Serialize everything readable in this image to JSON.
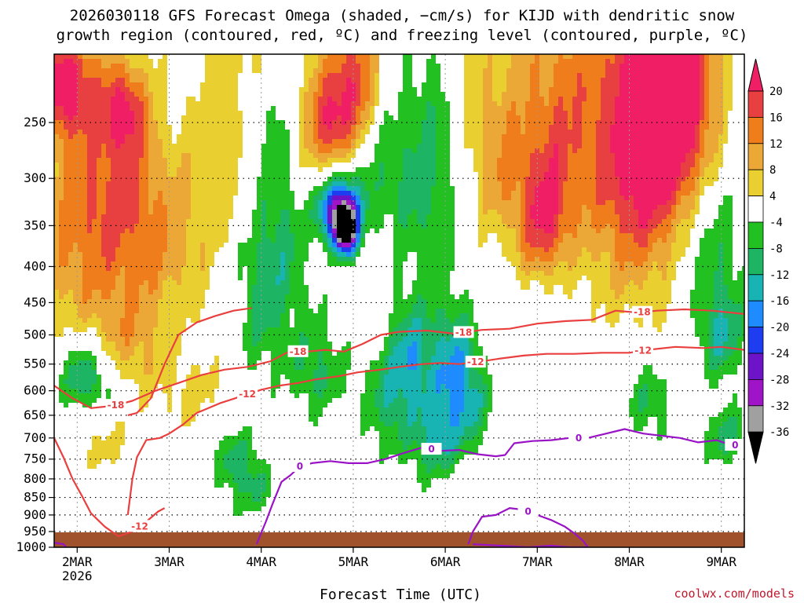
{
  "title": {
    "line1": "2026030118 GFS Forecast Omega (shaded, −cm/s) for KIJD with dendritic snow",
    "line2": "growth region (contoured, red, ºC) and freezing level (contoured, purple, ºC)"
  },
  "credit": "coolwx.com/models",
  "chart_data": {
    "type": "heatmap",
    "title": "2026030118 GFS Forecast Omega (shaded, −cm/s) for KIJD with dendritic snow growth region (contoured, red, ºC) and freezing level (contoured, purple, ºC)",
    "xlabel": "Forecast Time (UTC)",
    "ylabel": "",
    "x_ticks": [
      {
        "label": "2MAR",
        "sub": "2026",
        "day": 2
      },
      {
        "label": "3MAR",
        "sub": "",
        "day": 3
      },
      {
        "label": "4MAR",
        "sub": "",
        "day": 4
      },
      {
        "label": "5MAR",
        "sub": "",
        "day": 5
      },
      {
        "label": "6MAR",
        "sub": "",
        "day": 6
      },
      {
        "label": "7MAR",
        "sub": "",
        "day": 7
      },
      {
        "label": "8MAR",
        "sub": "",
        "day": 8
      },
      {
        "label": "9MAR",
        "sub": "",
        "day": 9
      }
    ],
    "xlim": [
      1.75,
      9.25
    ],
    "y_ticks": [
      250,
      300,
      350,
      400,
      450,
      500,
      550,
      600,
      650,
      700,
      750,
      800,
      850,
      900,
      950,
      1000
    ],
    "ylim_hpa": [
      200,
      1000
    ],
    "grid": true,
    "colorbar": {
      "levels": [
        20,
        16,
        12,
        8,
        4,
        -4,
        -8,
        -12,
        -16,
        -20,
        -24,
        -28,
        -32,
        -36
      ],
      "colors": [
        "#f01e64",
        "#e84040",
        "#ef7d1c",
        "#eca836",
        "#e9d030",
        "#ffffff",
        "#22c020",
        "#1db464",
        "#18b4b4",
        "#1e8cff",
        "#1e3cf0",
        "#6e14c8",
        "#a014c8",
        "#a0a0a0",
        "#000000"
      ]
    },
    "series": [
      {
        "name": "-18",
        "color": "#ea3f3f",
        "points": [
          [
            1.75,
            590
          ],
          [
            1.95,
            615
          ],
          [
            2.15,
            635
          ],
          [
            2.4,
            630
          ],
          [
            2.6,
            620
          ],
          [
            2.85,
            600
          ],
          [
            3.1,
            585
          ],
          [
            3.35,
            570
          ],
          [
            3.6,
            560
          ],
          [
            3.85,
            555
          ],
          [
            4.1,
            545
          ],
          [
            4.3,
            528
          ],
          [
            4.5,
            528
          ],
          [
            4.7,
            525
          ],
          [
            4.9,
            528
          ],
          [
            5.1,
            515
          ],
          [
            5.3,
            500
          ],
          [
            5.5,
            495
          ],
          [
            5.8,
            493
          ],
          [
            6.1,
            498
          ],
          [
            6.4,
            492
          ],
          [
            6.7,
            490
          ],
          [
            7.0,
            482
          ],
          [
            7.3,
            478
          ],
          [
            7.6,
            476
          ],
          [
            7.85,
            462
          ],
          [
            8.1,
            465
          ],
          [
            8.3,
            462
          ],
          [
            8.6,
            460
          ],
          [
            8.9,
            462
          ],
          [
            9.25,
            467
          ]
        ],
        "labels": [
          {
            "text": "-18",
            "day": 2.42
          },
          {
            "text": "-18",
            "day": 4.4
          },
          {
            "text": "-18",
            "day": 6.2
          },
          {
            "text": "-18",
            "day": 8.14
          }
        ]
      },
      {
        "name": "-12",
        "color": "#ea3f3f",
        "points": [
          [
            2.55,
            650
          ],
          [
            2.65,
            645
          ],
          [
            2.8,
            615
          ],
          [
            2.95,
            550
          ],
          [
            3.1,
            500
          ],
          [
            3.3,
            480
          ],
          [
            3.5,
            470
          ],
          [
            3.7,
            462
          ],
          [
            3.9,
            458
          ]
        ],
        "labels": []
      },
      {
        "name": "-12",
        "color": "#ea3f3f",
        "points": [
          [
            2.55,
            900
          ],
          [
            2.6,
            800
          ],
          [
            2.65,
            745
          ],
          [
            2.75,
            705
          ],
          [
            2.9,
            700
          ],
          [
            3.0,
            690
          ],
          [
            3.15,
            670
          ],
          [
            3.3,
            645
          ],
          [
            3.55,
            625
          ],
          [
            3.8,
            610
          ],
          [
            4.0,
            598
          ],
          [
            4.2,
            590
          ],
          [
            4.4,
            585
          ],
          [
            4.6,
            578
          ],
          [
            4.85,
            572
          ],
          [
            5.05,
            565
          ],
          [
            5.3,
            560
          ],
          [
            5.5,
            555
          ],
          [
            5.75,
            550
          ],
          [
            5.95,
            548
          ],
          [
            6.15,
            550
          ],
          [
            6.4,
            545
          ],
          [
            6.6,
            540
          ],
          [
            6.85,
            535
          ],
          [
            7.1,
            532
          ],
          [
            7.4,
            532
          ],
          [
            7.7,
            530
          ],
          [
            8.0,
            530
          ],
          [
            8.2,
            525
          ],
          [
            8.5,
            520
          ],
          [
            8.8,
            522
          ],
          [
            9.0,
            520
          ],
          [
            9.25,
            525
          ]
        ],
        "labels": [
          {
            "text": "-12",
            "day": 3.85
          },
          {
            "text": "-12",
            "day": 6.33
          },
          {
            "text": "-12",
            "day": 8.15
          }
        ]
      },
      {
        "name": "-12",
        "color": "#ea3f3f",
        "points": [
          [
            1.75,
            700
          ],
          [
            1.85,
            745
          ],
          [
            1.95,
            800
          ],
          [
            2.05,
            845
          ],
          [
            2.15,
            895
          ],
          [
            2.3,
            935
          ],
          [
            2.45,
            965
          ],
          [
            2.6,
            950
          ],
          [
            2.75,
            920
          ],
          [
            2.88,
            890
          ],
          [
            2.95,
            880
          ]
        ],
        "labels": [
          {
            "text": "-12",
            "day": 2.68
          }
        ]
      },
      {
        "name": "0",
        "color": "#9a12c6",
        "points": [
          [
            3.95,
            990
          ],
          [
            4.05,
            920
          ],
          [
            4.12,
            870
          ],
          [
            4.22,
            808
          ],
          [
            4.32,
            790
          ],
          [
            4.42,
            768
          ],
          [
            4.55,
            760
          ],
          [
            4.75,
            755
          ],
          [
            4.95,
            760
          ],
          [
            5.15,
            760
          ],
          [
            5.35,
            750
          ],
          [
            5.55,
            735
          ],
          [
            5.75,
            722
          ],
          [
            5.95,
            730
          ],
          [
            6.15,
            728
          ],
          [
            6.35,
            738
          ],
          [
            6.55,
            743
          ],
          [
            6.65,
            740
          ],
          [
            6.75,
            712
          ],
          [
            6.95,
            707
          ],
          [
            7.15,
            705
          ],
          [
            7.35,
            700
          ],
          [
            7.55,
            700
          ],
          [
            7.75,
            690
          ],
          [
            7.95,
            680
          ],
          [
            8.15,
            690
          ],
          [
            8.35,
            695
          ],
          [
            8.55,
            700
          ],
          [
            8.75,
            710
          ],
          [
            8.95,
            705
          ],
          [
            9.1,
            716
          ],
          [
            9.25,
            718
          ]
        ],
        "labels": [
          {
            "text": "0",
            "day": 4.42
          },
          {
            "text": "0",
            "day": 5.85
          },
          {
            "text": "0",
            "day": 7.45
          },
          {
            "text": "0",
            "day": 9.15
          }
        ]
      },
      {
        "name": "0",
        "color": "#9a12c6",
        "points": [
          [
            6.25,
            990
          ],
          [
            6.3,
            950
          ],
          [
            6.4,
            905
          ],
          [
            6.55,
            900
          ],
          [
            6.7,
            880
          ],
          [
            6.85,
            885
          ],
          [
            7.0,
            900
          ],
          [
            7.15,
            915
          ],
          [
            7.3,
            935
          ],
          [
            7.4,
            955
          ],
          [
            7.5,
            980
          ],
          [
            7.55,
            1000
          ],
          [
            7.35,
            1000
          ],
          [
            7.15,
            995
          ],
          [
            6.9,
            1000
          ],
          [
            6.6,
            995
          ],
          [
            6.3,
            990
          ]
        ],
        "labels": [
          {
            "text": "0",
            "day": 6.9
          }
        ]
      },
      {
        "name": "0",
        "color": "#9a12c6",
        "points": [
          [
            1.75,
            985
          ],
          [
            1.85,
            990
          ],
          [
            1.9,
            1005
          ]
        ],
        "labels": []
      }
    ]
  }
}
